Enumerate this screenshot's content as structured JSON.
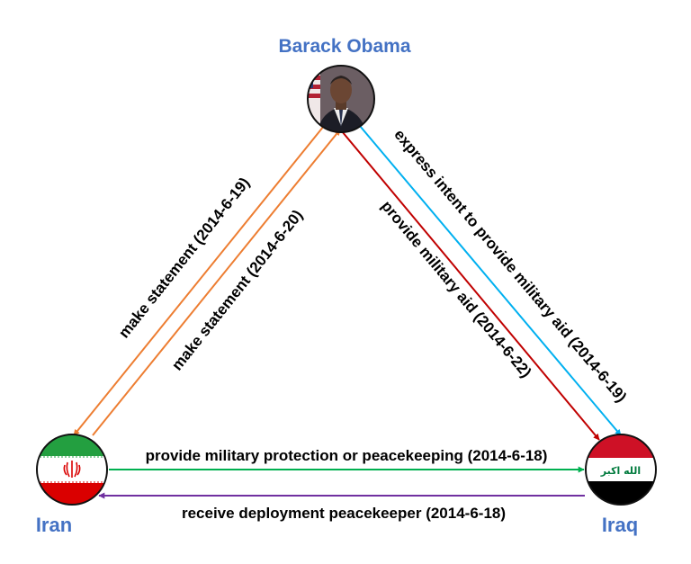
{
  "nodes": {
    "obama": {
      "label": "Barack Obama",
      "icon": "person-portrait-icon"
    },
    "iran": {
      "label": "Iran",
      "icon": "iran-flag-icon",
      "emblem": "Allah-emblem"
    },
    "iraq": {
      "label": "Iraq",
      "icon": "iraq-flag-icon",
      "emblem_text": "الله اكبر"
    }
  },
  "colors": {
    "node_label": "#4472c4",
    "statement_edge": "#ed7d31",
    "military_aid_edge": "#c00000",
    "intent_edge": "#00b0f0",
    "protection_edge": "#00b050",
    "deployment_edge": "#7030a0",
    "iran_green": "#239f40",
    "iran_red": "#da0000",
    "iraq_red": "#ce1126",
    "iraq_green": "#007a3d"
  },
  "edges": [
    {
      "id": "obama-iran-statement",
      "label": "make statement (2014-6-19)",
      "from": "Barack Obama",
      "to": "Iran"
    },
    {
      "id": "iran-obama-statement",
      "label": "make statement (2014-6-20)",
      "from": "Iran",
      "to": "Barack Obama"
    },
    {
      "id": "obama-iraq-aid",
      "label": "provide military aid (2014-6-22)",
      "from": "Barack Obama",
      "to": "Iraq"
    },
    {
      "id": "obama-iraq-intent",
      "label": "express intent to provide military aid (2014-6-19)",
      "from": "Barack Obama",
      "to": "Iraq"
    },
    {
      "id": "iran-iraq-protection",
      "label": "provide military protection or peacekeeping (2014-6-18)",
      "from": "Iran",
      "to": "Iraq"
    },
    {
      "id": "iraq-iran-deployment",
      "label": "receive deployment peacekeeper (2014-6-18)",
      "from": "Iraq",
      "to": "Iran"
    }
  ]
}
